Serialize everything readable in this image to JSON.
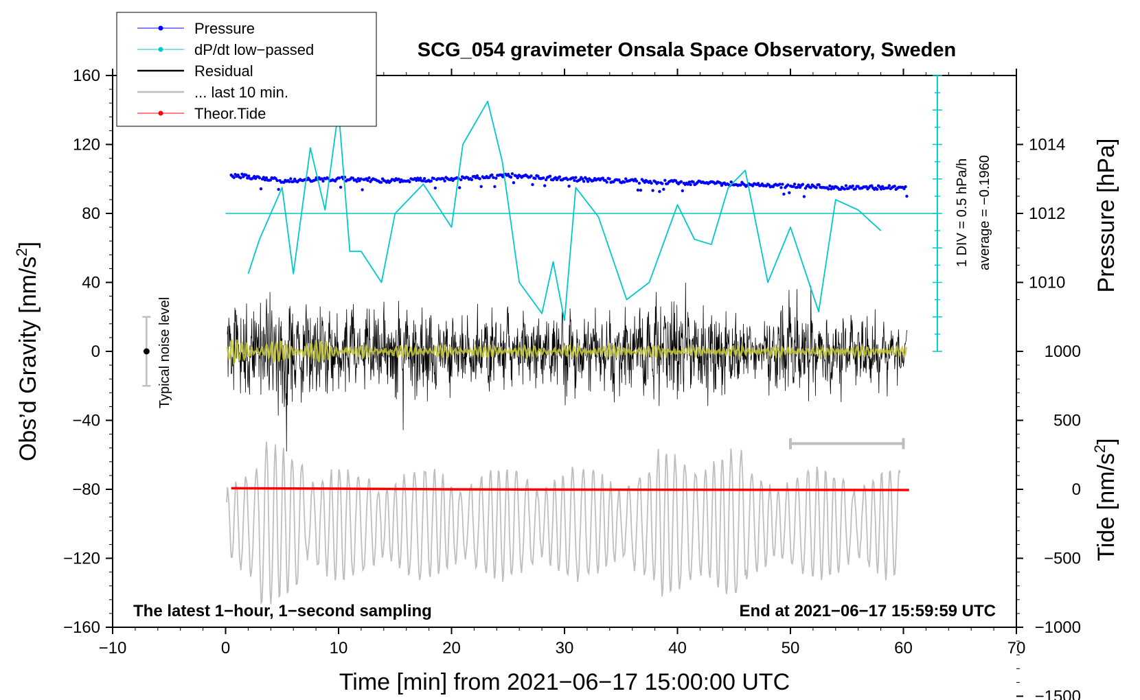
{
  "chart_data": {
    "type": "line",
    "title": "SCG_054 gravimeter Onsala Space Observatory, Sweden",
    "xlabel": "Time [min] from 2021−06−17 15:00:00 UTC",
    "ylabel_left": "Obs’d Gravity [nm/s",
    "ylabel_left_sup": "2",
    "ylabel_left_close": "]",
    "ylabel_right_pressure": "Pressure [hPa]",
    "ylabel_right_tide": "Tide [nm/s",
    "ylabel_right_tide_sup": "2",
    "ylabel_right_tide_close": "]",
    "xlim": [
      -10,
      70
    ],
    "ylim": [
      -160,
      160
    ],
    "x_ticks": [
      -10,
      0,
      10,
      20,
      30,
      40,
      50,
      60,
      70
    ],
    "x_tick_labels": [
      "−10",
      "0",
      "10",
      "20",
      "30",
      "40",
      "50",
      "60",
      "70"
    ],
    "y_ticks": [
      160,
      120,
      80,
      40,
      0,
      -40,
      -80,
      -120,
      -160
    ],
    "y_tick_labels": [
      "160",
      "120",
      "80",
      "40",
      "0",
      "−40",
      "−80",
      "−120",
      "−160"
    ],
    "pressure_ticks": [
      1014,
      1012,
      1010
    ],
    "pressure_tick_labels": [
      "1014",
      "1012",
      "1010"
    ],
    "tide_ticks": [
      1000,
      500,
      0,
      -500,
      -1000,
      -1500
    ],
    "tide_tick_labels": [
      "1000",
      "500",
      "0",
      "−500",
      "−1000",
      "−1500"
    ],
    "annotation_left": "The latest 1−hour, 1−second sampling",
    "annotation_right": "End at 2021−06−17 15:59:59 UTC",
    "noise_label": "Typical noise level",
    "dpdt_scale_label": "1 DIV = 0.5 hPa/h",
    "dpdt_average_label": "average = −0.1960",
    "legend": [
      {
        "label": "Pressure",
        "color": "#0000ff",
        "style": "line-dot"
      },
      {
        "label": "dP/dt low−passed",
        "color": "#00c8c8",
        "style": "line-dot"
      },
      {
        "label": "Residual",
        "color": "#000000",
        "style": "line"
      },
      {
        "label": "... last 10 min.",
        "color": "#bebebe",
        "style": "line"
      },
      {
        "label": "Theor.Tide",
        "color": "#ff0000",
        "style": "line-dot"
      }
    ],
    "series": [
      {
        "name": "Pressure",
        "axis": "pressure_hPa",
        "color": "#0000ff",
        "x": [
          1,
          5,
          10,
          15,
          20,
          25,
          30,
          35,
          40,
          45,
          50,
          55,
          60
        ],
        "y": [
          1013.1,
          1012.95,
          1013.0,
          1012.95,
          1013.0,
          1013.1,
          1013.0,
          1012.95,
          1012.9,
          1012.85,
          1012.8,
          1012.75,
          1012.75
        ]
      },
      {
        "name": "dP/dt low−passed",
        "axis": "gravity_display",
        "color": "#00c8c8",
        "x": [
          2,
          3,
          4,
          5,
          6,
          7.5,
          8.8,
          10,
          11,
          12,
          13.8,
          15,
          17.5,
          20,
          21,
          23.2,
          24.5,
          26,
          28,
          29,
          30,
          31,
          33,
          35.5,
          37.5,
          40,
          41.5,
          43,
          44.5,
          46,
          48,
          50,
          52.5,
          54,
          56,
          58
        ],
        "y": [
          45,
          65,
          80,
          95,
          45,
          118,
          82,
          140,
          58,
          58,
          40,
          80,
          97,
          72,
          120,
          145,
          110,
          40,
          22,
          52,
          18,
          95,
          78,
          30,
          40,
          85,
          65,
          62,
          95,
          105,
          40,
          72,
          23,
          88,
          82,
          70
        ]
      },
      {
        "name": "Theor.Tide",
        "axis": "tide_nm_s2",
        "color": "#ff0000",
        "x": [
          0.5,
          10,
          20,
          30,
          40,
          50,
          60.5
        ],
        "y": [
          8,
          5,
          0,
          -2,
          -3,
          -4,
          -5
        ]
      }
    ],
    "residual_envelope": {
      "name": "Residual",
      "color": "#000000",
      "x": [
        0.5,
        5,
        10,
        15,
        20,
        25,
        30,
        35,
        40,
        45,
        50,
        55,
        60
      ],
      "amplitude": [
        28,
        45,
        30,
        32,
        30,
        28,
        25,
        30,
        40,
        25,
        35,
        30,
        18
      ]
    },
    "last_10_min_trace": {
      "name": "... last 10 min.",
      "color": "#bebebe",
      "x_start": 50,
      "x_end": 60
    },
    "noise_level": {
      "x": -7,
      "center": 0,
      "half_range": 20
    },
    "dpdt_reference_level": 80,
    "dpdt_scale_bar": {
      "x": 63,
      "top": 160,
      "bottom": 0,
      "divisions": 16
    }
  }
}
